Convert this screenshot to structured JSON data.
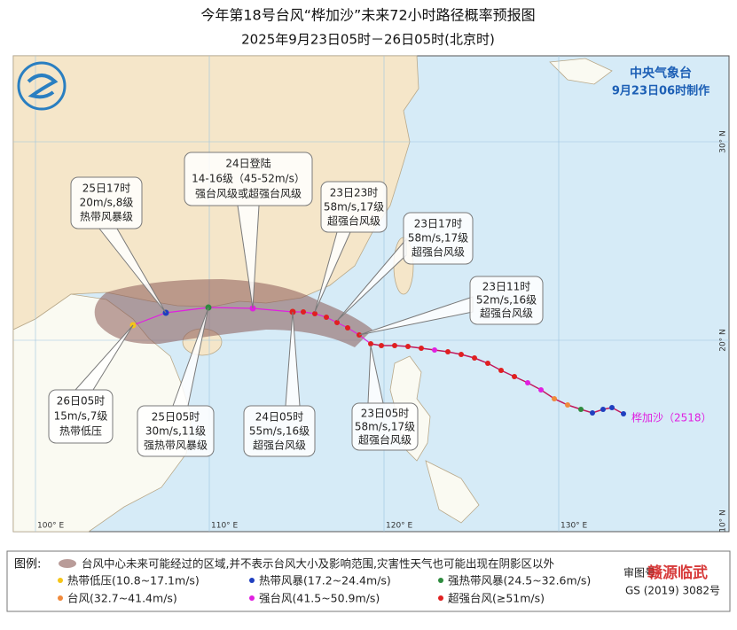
{
  "header": {
    "title": "今年第18号台风“桦加沙”未来72小时路径概率预报图",
    "subtitle": "2025年9月23日05时－26日05时(北京时)",
    "agency": "中央气象台",
    "issued": "9月23日06时制作"
  },
  "axes": {
    "lon": [
      "100° E",
      "110° E",
      "120° E",
      "130° E"
    ],
    "lat": [
      "30° N",
      "20° N",
      "10° N"
    ]
  },
  "typhoon_label": "桦加沙（2518）",
  "callouts": [
    [
      "25日17时",
      "20m/s,8级",
      "热带风暴级"
    ],
    [
      "24日登陆",
      "14-16级（45-52m/s）",
      "强台风级或超强台风级"
    ],
    [
      "23日23时",
      "58m/s,17级",
      "超强台风级"
    ],
    [
      "23日17时",
      "58m/s,17级",
      "超强台风级"
    ],
    [
      "23日11时",
      "52m/s,16级",
      "超强台风级"
    ],
    [
      "23日05时",
      "58m/s,17级",
      "超强台风级"
    ],
    [
      "24日05时",
      "55m/s,16级",
      "超强台风级"
    ],
    [
      "25日05时",
      "30m/s,11级",
      "强热带风暴级"
    ],
    [
      "26日05时",
      "15m/s,7级",
      "热带低压"
    ]
  ],
  "legend": {
    "title": "图例:",
    "cone": "台风中心未来可能经过的区域,并不表示台风大小及影响范围,灾害性天气也可能出现在阴影区以外",
    "items": [
      "热带低压(10.8~17.1m/s)",
      "热带风暴(17.2~24.4m/s)",
      "强热带风暴(24.5~32.6m/s)",
      "台风(32.7~41.4m/s)",
      "强台风(41.5~50.9m/s)",
      "超强台风(≥51m/s)"
    ]
  },
  "footer": {
    "review_label": "审图号",
    "review_number": "GS (2019) 3082号",
    "watermark": "赣源临武"
  }
}
